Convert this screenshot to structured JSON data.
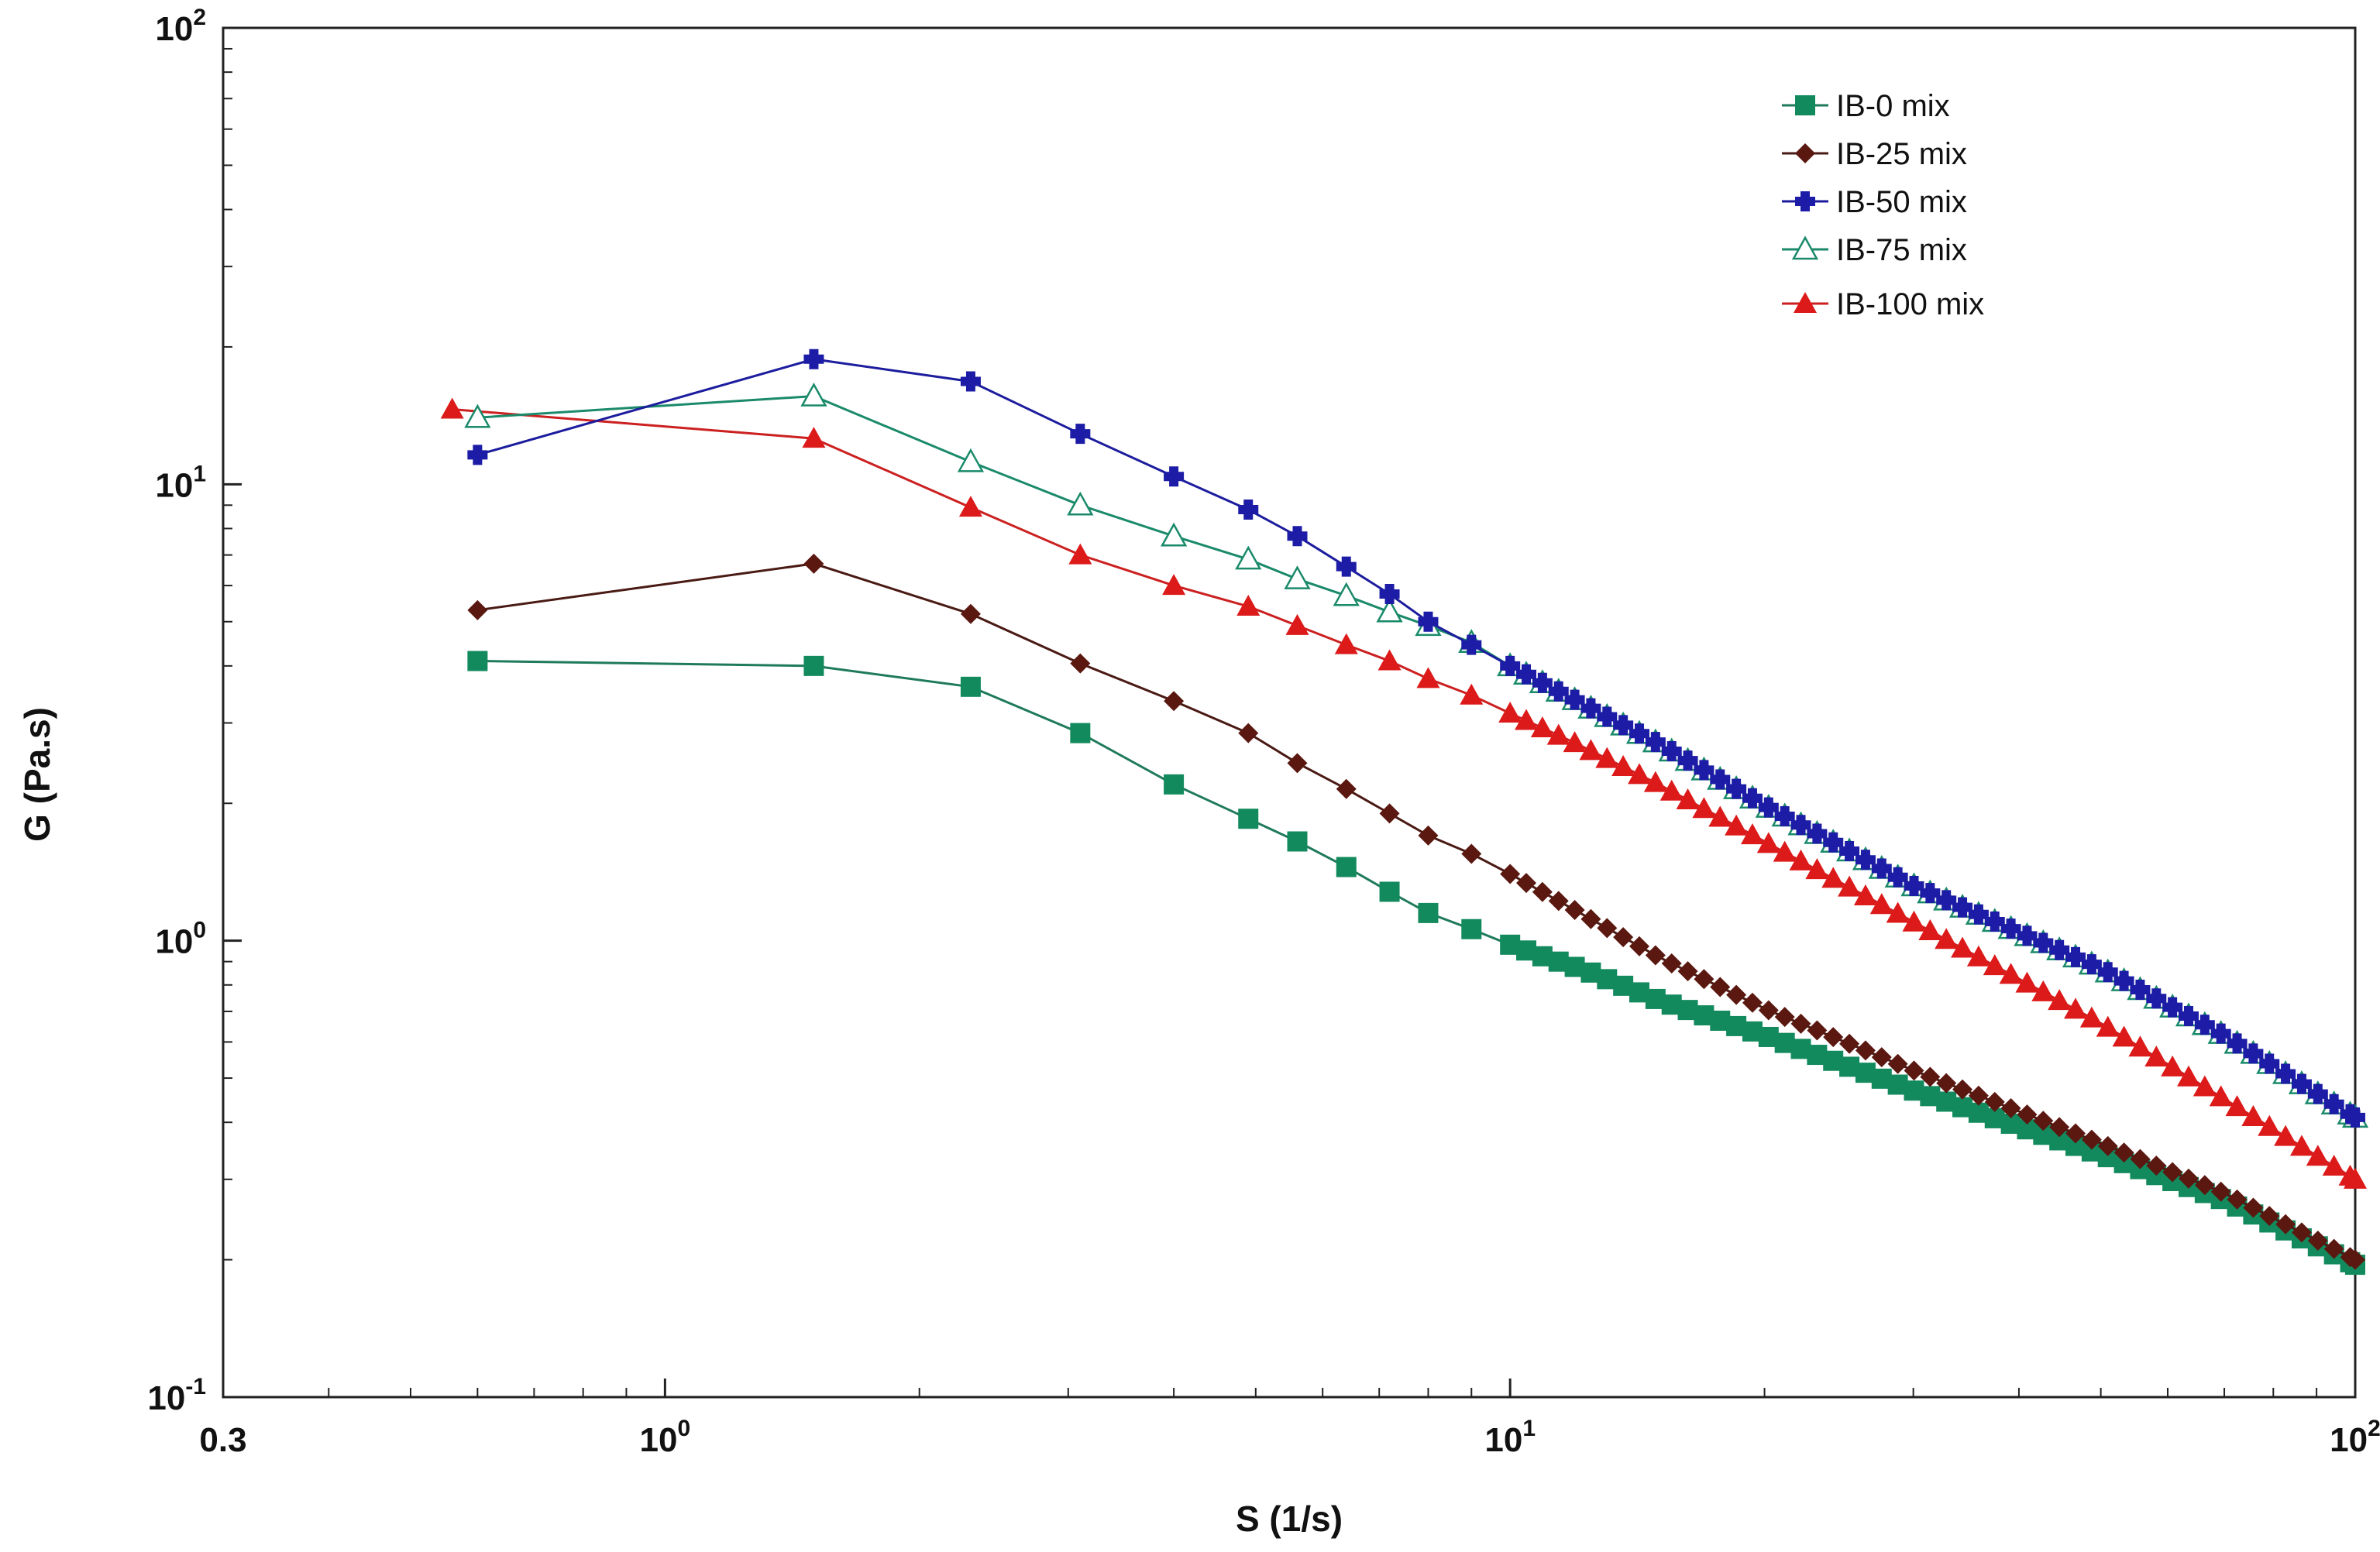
{
  "chart_data": {
    "type": "line",
    "xscale": "log",
    "yscale": "log",
    "xlabel": "S (1/s)",
    "ylabel": "G (Pa.s)",
    "xlim": [
      0.3,
      100
    ],
    "ylim": [
      0.1,
      100
    ],
    "xticks": [
      {
        "value": 0.3,
        "base": "0.3",
        "exp": ""
      },
      {
        "value": 1,
        "base": "10",
        "exp": "0"
      },
      {
        "value": 10,
        "base": "10",
        "exp": "1"
      },
      {
        "value": 100,
        "base": "10",
        "exp": "2"
      }
    ],
    "yticks": [
      {
        "value": 0.1,
        "base": "10",
        "exp": "-1"
      },
      {
        "value": 1,
        "base": "10",
        "exp": "0"
      },
      {
        "value": 10,
        "base": "10",
        "exp": "1"
      },
      {
        "value": 100,
        "base": "10",
        "exp": "2"
      }
    ],
    "legend_position": "top-right",
    "series": [
      {
        "name": "IB-0 mix",
        "marker": "square",
        "line_color": "#1f7a5c",
        "marker_color": "#138a5e",
        "filled": true,
        "anchors": [
          [
            0.6,
            4.1
          ],
          [
            1.5,
            4.0
          ],
          [
            2.3,
            3.6
          ],
          [
            3.1,
            2.85
          ],
          [
            4.0,
            2.2
          ],
          [
            4.9,
            1.85
          ],
          [
            5.6,
            1.65
          ],
          [
            6.4,
            1.45
          ],
          [
            7.2,
            1.28
          ],
          [
            8.0,
            1.15
          ],
          [
            9.0,
            1.06
          ],
          [
            10,
            0.98
          ],
          [
            11,
            0.92
          ],
          [
            12.3,
            0.86
          ],
          [
            15,
            0.74
          ],
          [
            20,
            0.62
          ],
          [
            30,
            0.47
          ],
          [
            50,
            0.34
          ],
          [
            70,
            0.27
          ],
          [
            100,
            0.195
          ]
        ]
      },
      {
        "name": "IB-25 mix",
        "marker": "diamond",
        "line_color": "#4a1a14",
        "marker_color": "#5a1810",
        "filled": true,
        "anchors": [
          [
            0.6,
            5.3
          ],
          [
            1.5,
            6.7
          ],
          [
            2.3,
            5.2
          ],
          [
            3.1,
            4.05
          ],
          [
            4.0,
            3.35
          ],
          [
            4.9,
            2.85
          ],
          [
            5.6,
            2.45
          ],
          [
            6.4,
            2.15
          ],
          [
            7.2,
            1.9
          ],
          [
            8.0,
            1.7
          ],
          [
            9.0,
            1.55
          ],
          [
            10,
            1.4
          ],
          [
            12,
            1.16
          ],
          [
            15,
            0.92
          ],
          [
            20,
            0.71
          ],
          [
            30,
            0.52
          ],
          [
            50,
            0.36
          ],
          [
            70,
            0.28
          ],
          [
            100,
            0.2
          ]
        ]
      },
      {
        "name": "IB-50 mix",
        "marker": "plus",
        "line_color": "#1c1c9e",
        "marker_color": "#1c1ca6",
        "filled": true,
        "anchors": [
          [
            0.6,
            11.6
          ],
          [
            1.5,
            18.8
          ],
          [
            2.3,
            16.8
          ],
          [
            3.1,
            12.9
          ],
          [
            4.0,
            10.4
          ],
          [
            4.9,
            8.8
          ],
          [
            5.6,
            7.7
          ],
          [
            6.4,
            6.6
          ],
          [
            7.2,
            5.75
          ],
          [
            8.0,
            5.0
          ],
          [
            9.0,
            4.45
          ],
          [
            10,
            4.0
          ],
          [
            12,
            3.35
          ],
          [
            15,
            2.7
          ],
          [
            20,
            1.98
          ],
          [
            30,
            1.32
          ],
          [
            50,
            0.87
          ],
          [
            70,
            0.62
          ],
          [
            100,
            0.41
          ]
        ]
      },
      {
        "name": "IB-75 mix",
        "marker": "triangle",
        "line_color": "#1a8a6a",
        "marker_color": "#1a8a6a",
        "filled": false,
        "anchors": [
          [
            0.6,
            14.0
          ],
          [
            1.5,
            15.6
          ],
          [
            2.3,
            11.2
          ],
          [
            3.1,
            9.0
          ],
          [
            4.0,
            7.7
          ],
          [
            4.9,
            6.85
          ],
          [
            5.6,
            6.2
          ],
          [
            6.4,
            5.7
          ],
          [
            7.2,
            5.25
          ],
          [
            8.0,
            4.9
          ],
          [
            9.0,
            4.5
          ],
          [
            10,
            4.0
          ],
          [
            12,
            3.35
          ],
          [
            15,
            2.7
          ],
          [
            20,
            1.98
          ],
          [
            30,
            1.32
          ],
          [
            50,
            0.87
          ],
          [
            70,
            0.62
          ],
          [
            100,
            0.41
          ]
        ]
      },
      {
        "name": "IB-100 mix",
        "marker": "triangle",
        "line_color": "#cc2020",
        "marker_color": "#dd1a1a",
        "filled": true,
        "anchors": [
          [
            0.56,
            14.6
          ],
          [
            1.5,
            12.6
          ],
          [
            2.3,
            8.9
          ],
          [
            3.1,
            7.0
          ],
          [
            4.0,
            6.0
          ],
          [
            4.9,
            5.4
          ],
          [
            5.6,
            4.9
          ],
          [
            6.4,
            4.45
          ],
          [
            7.2,
            4.1
          ],
          [
            8.0,
            3.75
          ],
          [
            9.0,
            3.45
          ],
          [
            10,
            3.15
          ],
          [
            12,
            2.7
          ],
          [
            15,
            2.2
          ],
          [
            20,
            1.65
          ],
          [
            30,
            1.1
          ],
          [
            50,
            0.66
          ],
          [
            70,
            0.45
          ],
          [
            100,
            0.3
          ]
        ]
      }
    ]
  }
}
